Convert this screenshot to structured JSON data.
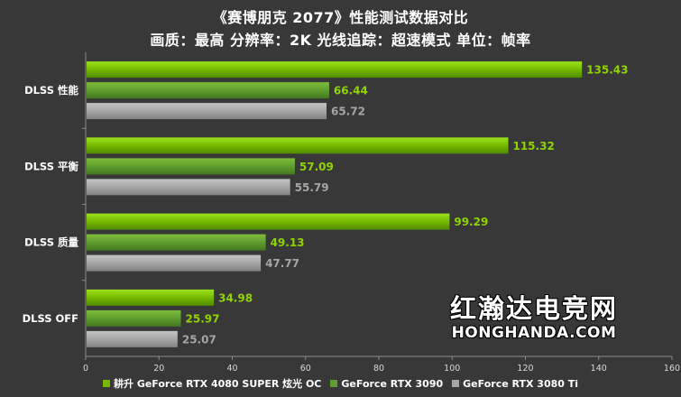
{
  "chart_data": {
    "type": "bar",
    "orientation": "horizontal",
    "title": "《赛博朋克 2077》性能测试数据对比",
    "subtitle": "画质：最高 分辨率：2K 光线追踪：超速模式 单位：帧率",
    "categories": [
      "DLSS 性能",
      "DLSS 平衡",
      "DLSS 质量",
      "DLSS OFF"
    ],
    "series": [
      {
        "name": "耕升 GeForce RTX 4080 SUPER 炫光 OC",
        "color": "#76b900",
        "values": [
          135.43,
          115.32,
          99.29,
          34.98
        ]
      },
      {
        "name": "GeForce RTX 3090",
        "color": "#5f9e2f",
        "values": [
          66.44,
          57.09,
          49.13,
          25.97
        ]
      },
      {
        "name": "GeForce RTX 3080 Ti",
        "color": "#a6a6a6",
        "values": [
          65.72,
          55.79,
          47.77,
          25.07
        ]
      }
    ],
    "xlim": [
      0,
      160
    ],
    "xticks": [
      "0",
      "20",
      "40",
      "60",
      "80",
      "100",
      "120",
      "140",
      "160"
    ],
    "label_colors": [
      "#8fd400",
      "#8fd400",
      "#a6a6a6"
    ],
    "legend_position": "bottom",
    "grid": false
  },
  "watermark": {
    "cn": "红瀚达电竞网",
    "en": "HONGHANDA.COM"
  }
}
